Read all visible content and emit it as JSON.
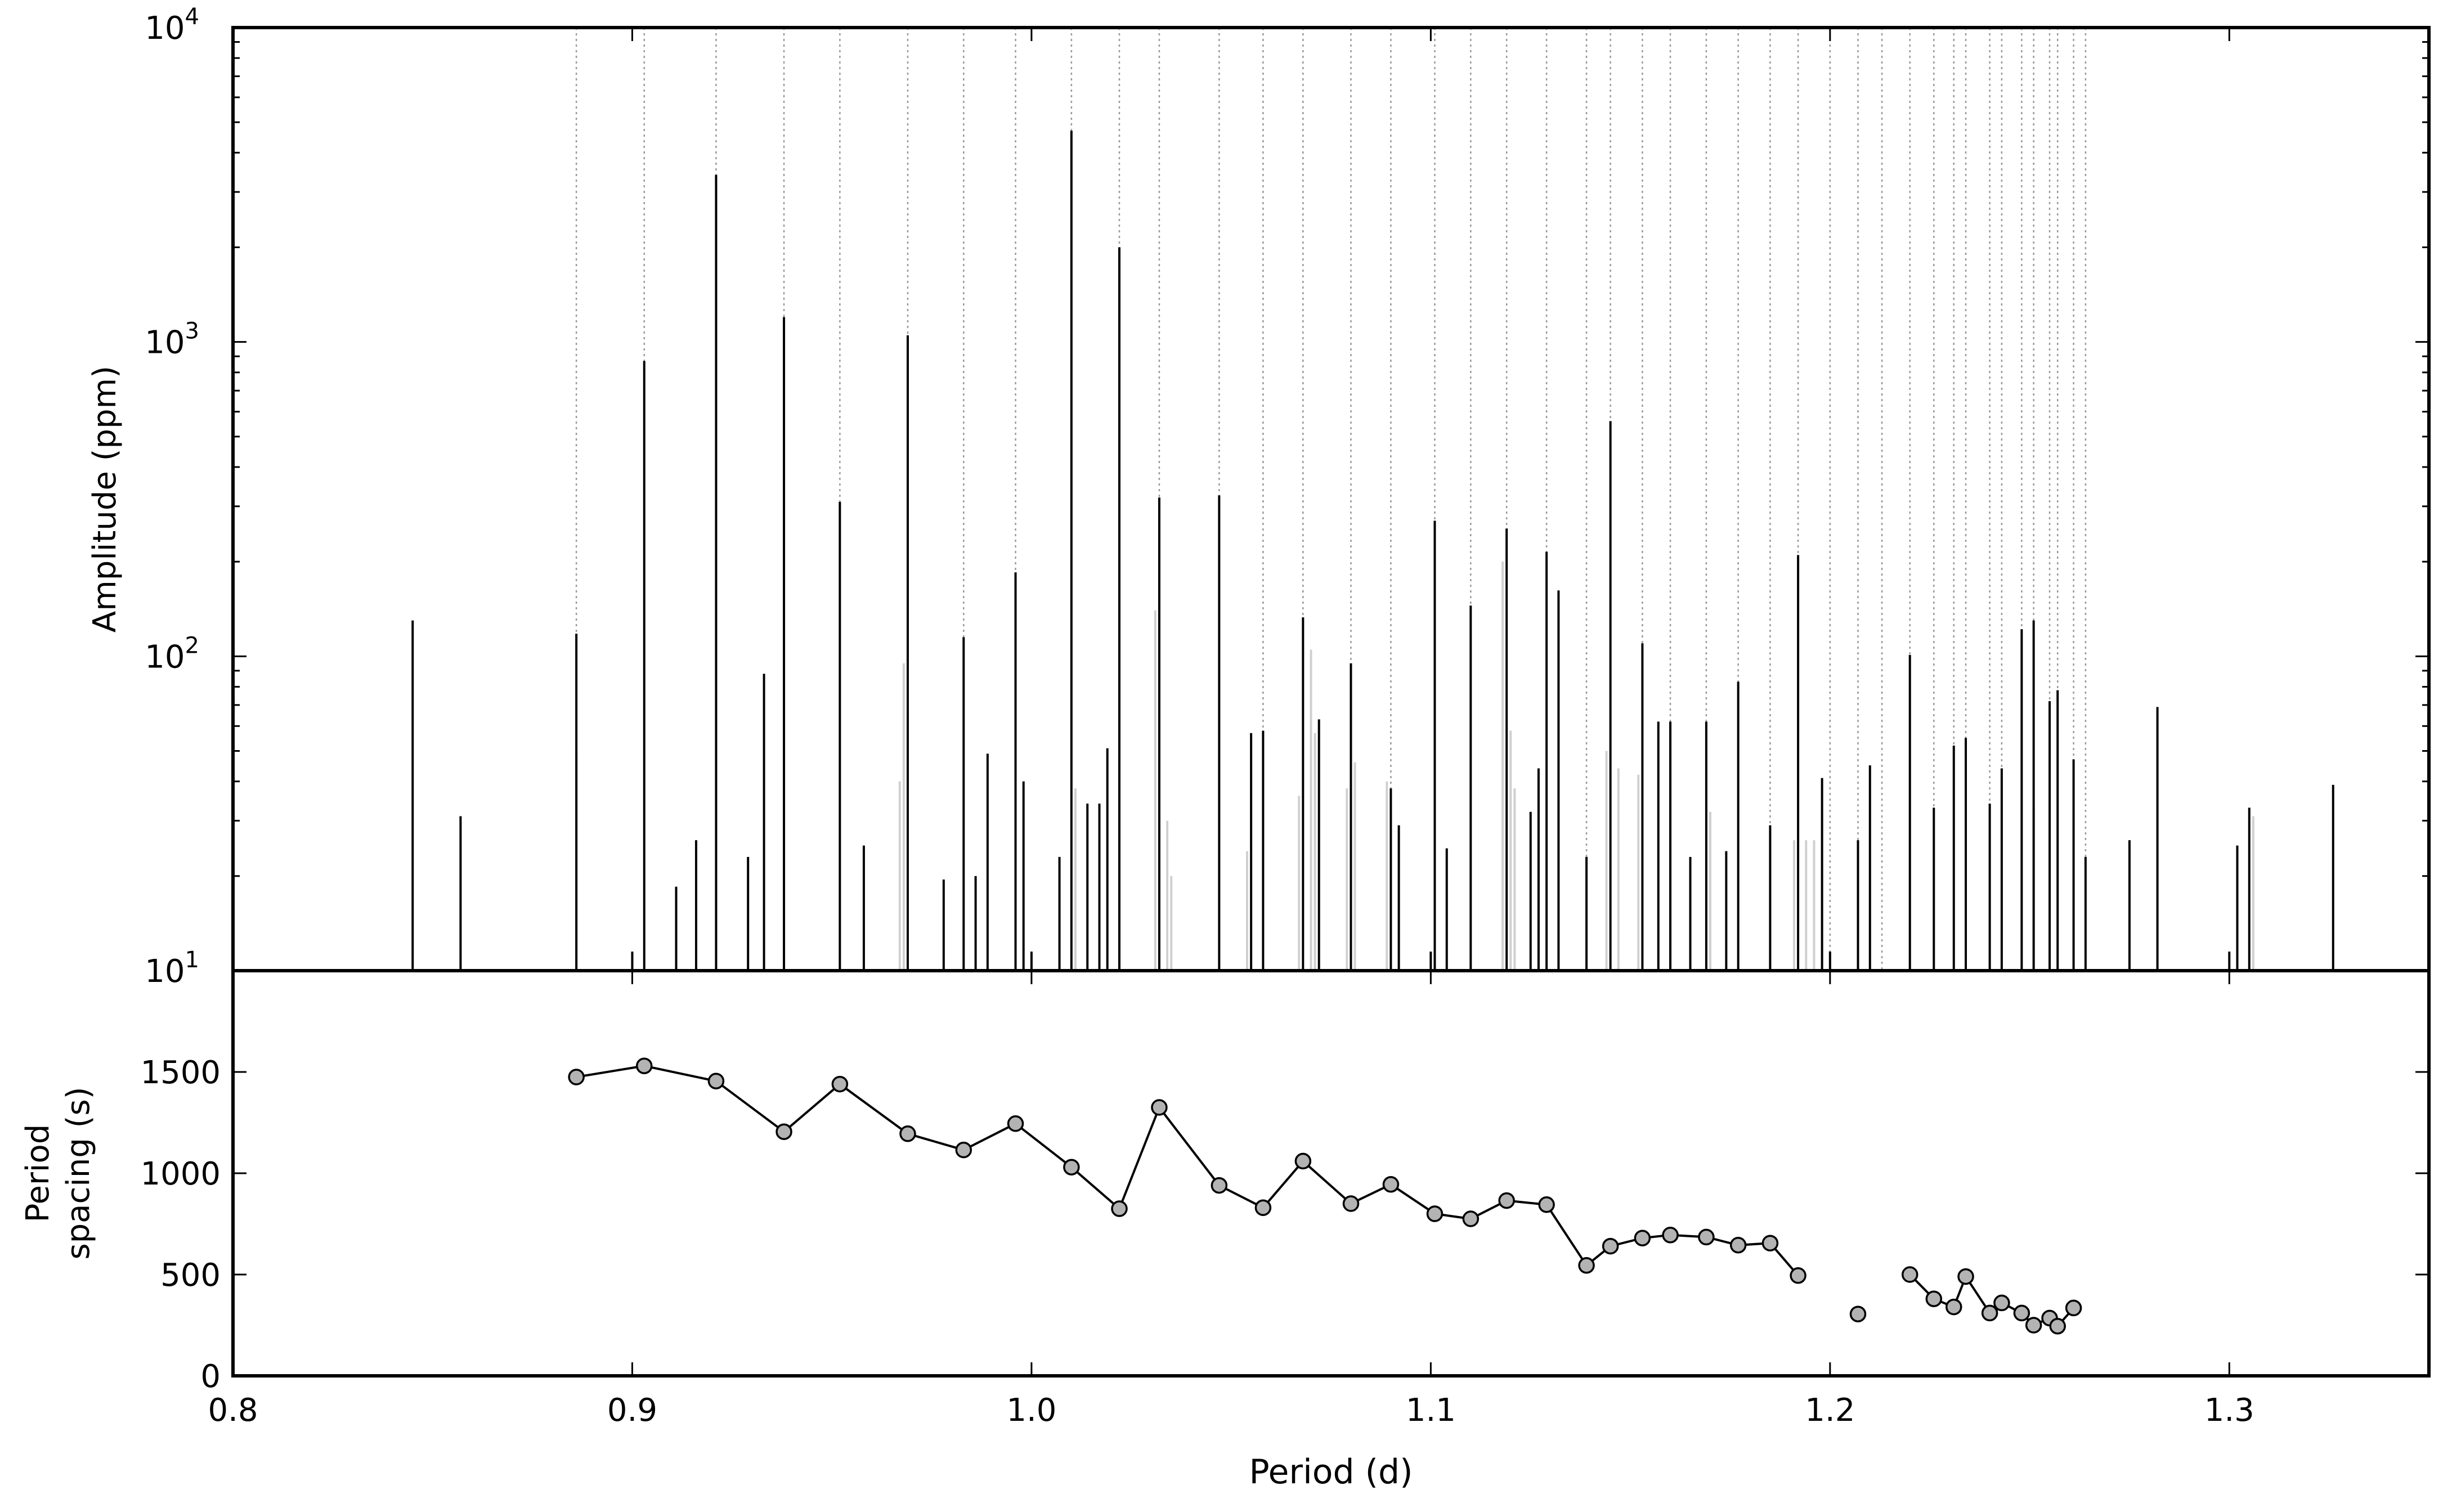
{
  "chart_data": [
    {
      "panel": "top",
      "type": "bar",
      "subtype": "stick-spectrum",
      "xlabel": "Period (d)",
      "ylabel": "Amplitude (ppm)",
      "xlim": [
        0.8,
        1.35
      ],
      "ylim": [
        10,
        10000
      ],
      "yscale": "log",
      "yticks": [
        10,
        100,
        1000,
        10000
      ],
      "ytick_labels": [
        {
          "base": "10",
          "exp": "1"
        },
        {
          "base": "10",
          "exp": "2"
        },
        {
          "base": "10",
          "exp": "3"
        },
        {
          "base": "10",
          "exp": "4"
        }
      ],
      "grid": false,
      "colors": {
        "primary": "#000000",
        "secondary": "#d0d0d0",
        "ruler": "#9a9a9a"
      },
      "series": [
        {
          "role": "observed modes",
          "color": "#000000",
          "points": [
            {
              "x": 0.845,
              "y": 130
            },
            {
              "x": 0.857,
              "y": 31
            },
            {
              "x": 0.886,
              "y": 118
            },
            {
              "x": 0.9,
              "y": 11.5
            },
            {
              "x": 0.903,
              "y": 870
            },
            {
              "x": 0.911,
              "y": 18.5
            },
            {
              "x": 0.916,
              "y": 26
            },
            {
              "x": 0.921,
              "y": 3400
            },
            {
              "x": 0.929,
              "y": 23
            },
            {
              "x": 0.933,
              "y": 88
            },
            {
              "x": 0.938,
              "y": 1200
            },
            {
              "x": 0.952,
              "y": 310
            },
            {
              "x": 0.958,
              "y": 25
            },
            {
              "x": 0.969,
              "y": 1050
            },
            {
              "x": 0.978,
              "y": 19.5
            },
            {
              "x": 0.983,
              "y": 115
            },
            {
              "x": 0.986,
              "y": 20
            },
            {
              "x": 0.989,
              "y": 49
            },
            {
              "x": 0.996,
              "y": 185
            },
            {
              "x": 0.998,
              "y": 40
            },
            {
              "x": 1.0,
              "y": 11.5
            },
            {
              "x": 1.007,
              "y": 23
            },
            {
              "x": 1.01,
              "y": 4700
            },
            {
              "x": 1.014,
              "y": 34
            },
            {
              "x": 1.017,
              "y": 34
            },
            {
              "x": 1.019,
              "y": 51
            },
            {
              "x": 1.022,
              "y": 2000
            },
            {
              "x": 1.032,
              "y": 320
            },
            {
              "x": 1.047,
              "y": 325
            },
            {
              "x": 1.055,
              "y": 57
            },
            {
              "x": 1.058,
              "y": 58
            },
            {
              "x": 1.068,
              "y": 133
            },
            {
              "x": 1.072,
              "y": 63
            },
            {
              "x": 1.08,
              "y": 95
            },
            {
              "x": 1.09,
              "y": 38
            },
            {
              "x": 1.092,
              "y": 29
            },
            {
              "x": 1.1,
              "y": 11.5
            },
            {
              "x": 1.101,
              "y": 270
            },
            {
              "x": 1.104,
              "y": 24.5
            },
            {
              "x": 1.11,
              "y": 145
            },
            {
              "x": 1.119,
              "y": 255
            },
            {
              "x": 1.125,
              "y": 32
            },
            {
              "x": 1.127,
              "y": 44
            },
            {
              "x": 1.129,
              "y": 215
            },
            {
              "x": 1.132,
              "y": 162
            },
            {
              "x": 1.139,
              "y": 23
            },
            {
              "x": 1.145,
              "y": 560
            },
            {
              "x": 1.153,
              "y": 110
            },
            {
              "x": 1.157,
              "y": 62
            },
            {
              "x": 1.16,
              "y": 62
            },
            {
              "x": 1.165,
              "y": 23
            },
            {
              "x": 1.169,
              "y": 62
            },
            {
              "x": 1.174,
              "y": 24
            },
            {
              "x": 1.177,
              "y": 83
            },
            {
              "x": 1.185,
              "y": 29
            },
            {
              "x": 1.192,
              "y": 210
            },
            {
              "x": 1.198,
              "y": 41
            },
            {
              "x": 1.2,
              "y": 11.5
            },
            {
              "x": 1.207,
              "y": 26
            },
            {
              "x": 1.21,
              "y": 45
            },
            {
              "x": 1.22,
              "y": 101
            },
            {
              "x": 1.226,
              "y": 33
            },
            {
              "x": 1.231,
              "y": 52
            },
            {
              "x": 1.234,
              "y": 55
            },
            {
              "x": 1.24,
              "y": 34
            },
            {
              "x": 1.243,
              "y": 44
            },
            {
              "x": 1.248,
              "y": 122
            },
            {
              "x": 1.251,
              "y": 130
            },
            {
              "x": 1.255,
              "y": 72
            },
            {
              "x": 1.257,
              "y": 78
            },
            {
              "x": 1.261,
              "y": 47
            },
            {
              "x": 1.264,
              "y": 23
            },
            {
              "x": 1.275,
              "y": 26
            },
            {
              "x": 1.282,
              "y": 69
            },
            {
              "x": 1.3,
              "y": 11.5
            },
            {
              "x": 1.302,
              "y": 25
            },
            {
              "x": 1.305,
              "y": 33
            },
            {
              "x": 1.326,
              "y": 39
            }
          ]
        },
        {
          "role": "secondary peaks",
          "color": "#d0d0d0",
          "points": [
            {
              "x": 0.886,
              "y": 50
            },
            {
              "x": 0.921,
              "y": 20
            },
            {
              "x": 0.938,
              "y": 26
            },
            {
              "x": 0.967,
              "y": 40
            },
            {
              "x": 0.968,
              "y": 95
            },
            {
              "x": 0.969,
              "y": 65
            },
            {
              "x": 1.011,
              "y": 38
            },
            {
              "x": 1.031,
              "y": 140
            },
            {
              "x": 1.034,
              "y": 30
            },
            {
              "x": 1.035,
              "y": 20
            },
            {
              "x": 1.054,
              "y": 24
            },
            {
              "x": 1.067,
              "y": 36
            },
            {
              "x": 1.07,
              "y": 105
            },
            {
              "x": 1.071,
              "y": 57
            },
            {
              "x": 1.079,
              "y": 38
            },
            {
              "x": 1.081,
              "y": 46
            },
            {
              "x": 1.089,
              "y": 40
            },
            {
              "x": 1.118,
              "y": 200
            },
            {
              "x": 1.12,
              "y": 58
            },
            {
              "x": 1.121,
              "y": 38
            },
            {
              "x": 1.144,
              "y": 50
            },
            {
              "x": 1.147,
              "y": 44
            },
            {
              "x": 1.152,
              "y": 42
            },
            {
              "x": 1.17,
              "y": 32
            },
            {
              "x": 1.191,
              "y": 26
            },
            {
              "x": 1.194,
              "y": 26
            },
            {
              "x": 1.196,
              "y": 26
            },
            {
              "x": 1.251,
              "y": 33
            },
            {
              "x": 1.306,
              "y": 31
            }
          ]
        }
      ],
      "reference_lines_x": [
        0.886,
        0.903,
        0.921,
        0.938,
        0.952,
        0.969,
        0.983,
        0.996,
        1.01,
        1.022,
        1.032,
        1.047,
        1.058,
        1.068,
        1.08,
        1.09,
        1.101,
        1.11,
        1.119,
        1.129,
        1.139,
        1.145,
        1.153,
        1.16,
        1.169,
        1.177,
        1.185,
        1.192,
        1.2,
        1.207,
        1.213,
        1.22,
        1.226,
        1.231,
        1.234,
        1.24,
        1.243,
        1.248,
        1.251,
        1.255,
        1.257,
        1.261,
        1.264
      ]
    },
    {
      "panel": "bottom",
      "type": "line",
      "xlabel": "Period (d)",
      "ylabel_lines": [
        "Period",
        "spacing (s)"
      ],
      "xlim": [
        0.8,
        1.35
      ],
      "ylim": [
        0,
        2000
      ],
      "xticks": [
        "0.8",
        "0.9",
        "1.0",
        "1.1",
        "1.2",
        "1.3"
      ],
      "yticks": [
        "0",
        "500",
        "1000",
        "1500"
      ],
      "grid": false,
      "marker": "circle",
      "colors": {
        "line": "#000000",
        "marker_fill": "#b3b3b3",
        "marker_edge": "#000000"
      },
      "segments": [
        [
          {
            "x": 0.886,
            "y": 1475
          },
          {
            "x": 0.903,
            "y": 1530
          },
          {
            "x": 0.921,
            "y": 1455
          },
          {
            "x": 0.938,
            "y": 1205
          },
          {
            "x": 0.952,
            "y": 1440
          },
          {
            "x": 0.969,
            "y": 1195
          },
          {
            "x": 0.983,
            "y": 1115
          },
          {
            "x": 0.996,
            "y": 1245
          },
          {
            "x": 1.01,
            "y": 1030
          },
          {
            "x": 1.022,
            "y": 825
          },
          {
            "x": 1.032,
            "y": 1325
          },
          {
            "x": 1.047,
            "y": 940
          },
          {
            "x": 1.058,
            "y": 830
          },
          {
            "x": 1.068,
            "y": 1060
          },
          {
            "x": 1.08,
            "y": 850
          },
          {
            "x": 1.09,
            "y": 945
          },
          {
            "x": 1.101,
            "y": 800
          },
          {
            "x": 1.11,
            "y": 775
          },
          {
            "x": 1.119,
            "y": 865
          },
          {
            "x": 1.129,
            "y": 845
          },
          {
            "x": 1.139,
            "y": 545
          },
          {
            "x": 1.145,
            "y": 640
          },
          {
            "x": 1.153,
            "y": 680
          },
          {
            "x": 1.16,
            "y": 695
          },
          {
            "x": 1.169,
            "y": 685
          },
          {
            "x": 1.177,
            "y": 645
          },
          {
            "x": 1.185,
            "y": 655
          },
          {
            "x": 1.192,
            "y": 495
          }
        ],
        [
          {
            "x": 1.207,
            "y": 305
          }
        ],
        [
          {
            "x": 1.22,
            "y": 500
          },
          {
            "x": 1.226,
            "y": 380
          },
          {
            "x": 1.231,
            "y": 340
          },
          {
            "x": 1.234,
            "y": 490
          },
          {
            "x": 1.24,
            "y": 310
          },
          {
            "x": 1.243,
            "y": 360
          },
          {
            "x": 1.248,
            "y": 310
          },
          {
            "x": 1.251,
            "y": 250
          },
          {
            "x": 1.255,
            "y": 285
          },
          {
            "x": 1.257,
            "y": 245
          },
          {
            "x": 1.261,
            "y": 335
          }
        ]
      ]
    }
  ]
}
